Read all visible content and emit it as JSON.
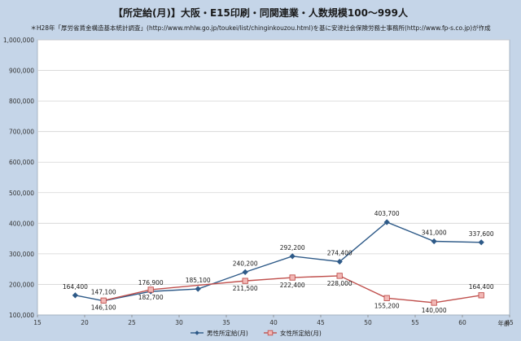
{
  "chart_data": {
    "type": "line",
    "title": "【所定給(月)】大阪・E15印刷・同関連業・人数規模100～999人",
    "subtitle": "＊H28年「厚労省賃金構造基本統計調査」(http://www.mhlw.go.jp/toukei/list/chinginkouzou.html)を基に安達社会保険労務士事務所(http://www.fp-s.co.jp)が作成",
    "xlabel": "年齢",
    "ylabel": "",
    "xlim": [
      15,
      65
    ],
    "ylim": [
      100000,
      1000000
    ],
    "xticks": [
      15,
      20,
      25,
      30,
      35,
      40,
      45,
      50,
      55,
      60,
      65
    ],
    "yticks": [
      100000,
      200000,
      300000,
      400000,
      500000,
      600000,
      700000,
      800000,
      900000,
      1000000
    ],
    "xtick_labels": [
      "15",
      "20",
      "25",
      "30",
      "35",
      "40",
      "45",
      "50",
      "55",
      "60",
      "65"
    ],
    "ytick_labels": [
      "100,000",
      "200,000",
      "300,000",
      "400,000",
      "500,000",
      "600,000",
      "700,000",
      "800,000",
      "900,000",
      "1,000,000"
    ],
    "grid": true,
    "legend_position": "bottom-center",
    "series": [
      {
        "name": "男性所定給(月)",
        "color": "#2e5a88",
        "marker": "diamond",
        "x": [
          19,
          22,
          27,
          32,
          37,
          42,
          47,
          52,
          57,
          62
        ],
        "values": [
          164400,
          146100,
          176900,
          185100,
          240200,
          292200,
          274400,
          403700,
          341000,
          337600
        ],
        "labels": [
          "164,400",
          "146,100",
          "176,900",
          "185,100",
          "240,200",
          "292,200",
          "274,400",
          "403,700",
          "341,000",
          "337,600"
        ]
      },
      {
        "name": "女性所定給(月)",
        "color": "#c0504d",
        "marker": "square",
        "x": [
          22,
          27,
          37,
          42,
          47,
          52,
          57,
          62
        ],
        "values": [
          147100,
          182700,
          211500,
          222400,
          228000,
          155200,
          140000,
          164400
        ],
        "labels": [
          "147,100",
          "182,700",
          "211,500",
          "222,400",
          "228,000",
          "155,200",
          "140,000",
          "164,400"
        ]
      }
    ]
  }
}
